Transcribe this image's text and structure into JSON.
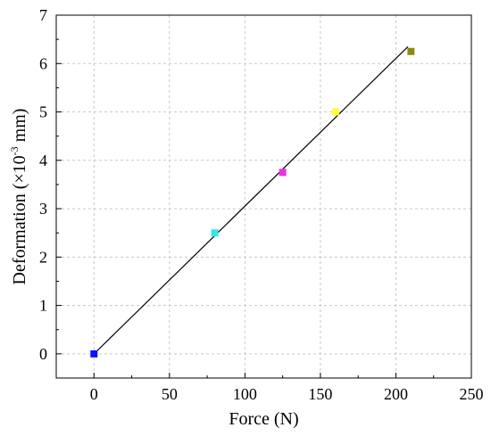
{
  "chart_data": {
    "type": "scatter",
    "title": "",
    "xlabel": "Force (N)",
    "ylabel": {
      "prefix": "Deformation (×10",
      "exponent": "-3",
      "suffix": " mm)"
    },
    "xlim": [
      -25,
      250
    ],
    "ylim": [
      -0.5,
      7
    ],
    "xticks": [
      0,
      50,
      100,
      150,
      200,
      250
    ],
    "yticks": [
      0,
      1,
      2,
      3,
      4,
      5,
      6,
      7
    ],
    "grid": true,
    "legend": "none",
    "points": [
      {
        "x": 0,
        "y": 0,
        "color": "#1010ff"
      },
      {
        "x": 80,
        "y": 2.5,
        "color": "#33e6e6"
      },
      {
        "x": 125,
        "y": 3.75,
        "color": "#e632e6"
      },
      {
        "x": 160,
        "y": 5.0,
        "color": "#ffff33"
      },
      {
        "x": 210,
        "y": 6.25,
        "color": "#8a8a10"
      }
    ],
    "fit_line": {
      "x": [
        0,
        208
      ],
      "y": [
        0,
        6.35
      ],
      "color": "#000000"
    }
  }
}
